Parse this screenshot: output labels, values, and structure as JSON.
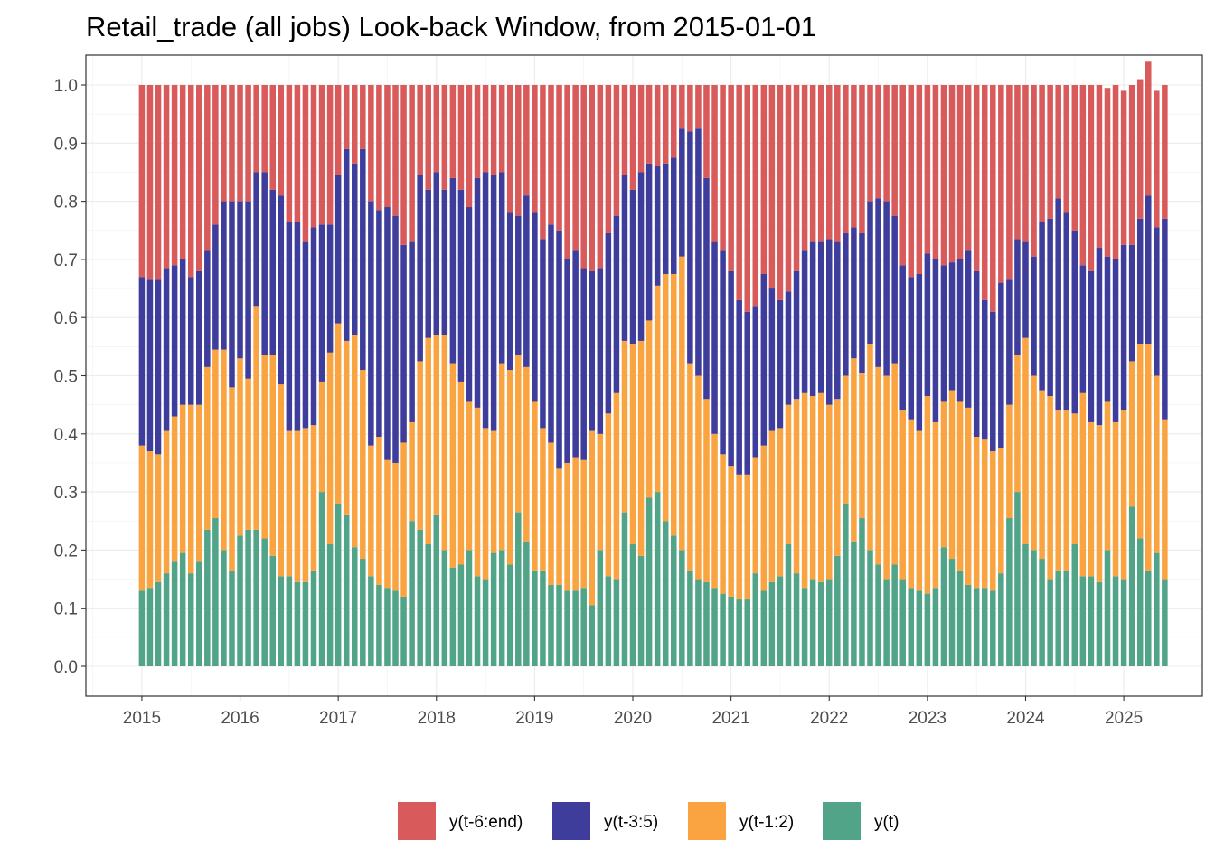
{
  "chart_data": {
    "type": "bar",
    "stacked": true,
    "title": "Retail_trade (all jobs) Look-back Window, from 2015-01-01",
    "xlabel": "",
    "ylabel": "",
    "x_start": "2015-01",
    "x_end": "2025-04",
    "ylim": [
      0,
      1
    ],
    "xlim": [
      2014.43,
      2025.8
    ],
    "y_ticks": [
      "0.0",
      "0.1",
      "0.2",
      "0.3",
      "0.4",
      "0.5",
      "0.6",
      "0.7",
      "0.8",
      "0.9",
      "1.0"
    ],
    "x_ticks": [
      "2015",
      "2016",
      "2017",
      "2018",
      "2019",
      "2020",
      "2021",
      "2022",
      "2023",
      "2024",
      "2025"
    ],
    "grid": true,
    "legend_position": "bottom",
    "series_colors": {
      "y_t": "#52a488",
      "y_t1_2": "#f9a440",
      "y_t3_5": "#3e3d9c",
      "y_t6_end": "#d85a5a"
    },
    "legend": [
      {
        "key": "y_t6_end",
        "label": "y(t-6:end)"
      },
      {
        "key": "y_t3_5",
        "label": "y(t-3:5)"
      },
      {
        "key": "y_t1_2",
        "label": "y(t-1:2)"
      },
      {
        "key": "y_t",
        "label": "y(t)"
      }
    ],
    "series": [
      {
        "name": "y(t)",
        "key": "y_t",
        "values": [
          0.13,
          0.135,
          0.145,
          0.16,
          0.18,
          0.195,
          0.16,
          0.18,
          0.235,
          0.255,
          0.2,
          0.165,
          0.225,
          0.235,
          0.235,
          0.22,
          0.19,
          0.155,
          0.155,
          0.145,
          0.145,
          0.165,
          0.3,
          0.21,
          0.28,
          0.26,
          0.205,
          0.185,
          0.155,
          0.14,
          0.135,
          0.13,
          0.12,
          0.25,
          0.235,
          0.21,
          0.26,
          0.2,
          0.17,
          0.175,
          0.2,
          0.155,
          0.15,
          0.195,
          0.2,
          0.175,
          0.265,
          0.215,
          0.165,
          0.165,
          0.14,
          0.14,
          0.13,
          0.13,
          0.135,
          0.105,
          0.2,
          0.155,
          0.15,
          0.265,
          0.21,
          0.19,
          0.29,
          0.3,
          0.25,
          0.225,
          0.2,
          0.165,
          0.15,
          0.145,
          0.135,
          0.125,
          0.12,
          0.115,
          0.115,
          0.16,
          0.13,
          0.145,
          0.155,
          0.21,
          0.16,
          0.135,
          0.15,
          0.145,
          0.15,
          0.19,
          0.28,
          0.215,
          0.255,
          0.2,
          0.175,
          0.15,
          0.175,
          0.15,
          0.135,
          0.13,
          0.125,
          0.135,
          0.205,
          0.185,
          0.165,
          0.14,
          0.135,
          0.135,
          0.13,
          0.16,
          0.255,
          0.3,
          0.21,
          0.2,
          0.185,
          0.15,
          0.165,
          0.165,
          0.21,
          0.155,
          0.155,
          0.145,
          0.2,
          0.155,
          0.15,
          0.275,
          0.22,
          0.165,
          0.195,
          0.15
        ]
      },
      {
        "name": "y(t-1:2)",
        "key": "y_t1_2",
        "values": [
          0.25,
          0.235,
          0.22,
          0.245,
          0.25,
          0.255,
          0.29,
          0.27,
          0.28,
          0.29,
          0.345,
          0.315,
          0.305,
          0.26,
          0.385,
          0.315,
          0.345,
          0.33,
          0.25,
          0.26,
          0.265,
          0.25,
          0.19,
          0.33,
          0.31,
          0.3,
          0.365,
          0.325,
          0.225,
          0.255,
          0.22,
          0.22,
          0.265,
          0.17,
          0.29,
          0.355,
          0.31,
          0.37,
          0.35,
          0.315,
          0.255,
          0.29,
          0.26,
          0.21,
          0.32,
          0.335,
          0.27,
          0.3,
          0.29,
          0.245,
          0.245,
          0.2,
          0.22,
          0.23,
          0.22,
          0.3,
          0.2,
          0.28,
          0.32,
          0.295,
          0.345,
          0.37,
          0.305,
          0.355,
          0.425,
          0.45,
          0.505,
          0.355,
          0.35,
          0.315,
          0.265,
          0.24,
          0.225,
          0.215,
          0.215,
          0.2,
          0.25,
          0.26,
          0.255,
          0.24,
          0.3,
          0.335,
          0.315,
          0.325,
          0.3,
          0.27,
          0.22,
          0.315,
          0.25,
          0.355,
          0.34,
          0.35,
          0.345,
          0.29,
          0.29,
          0.275,
          0.34,
          0.285,
          0.25,
          0.29,
          0.29,
          0.305,
          0.26,
          0.255,
          0.24,
          0.215,
          0.195,
          0.235,
          0.355,
          0.3,
          0.29,
          0.315,
          0.275,
          0.275,
          0.225,
          0.315,
          0.265,
          0.27,
          0.255,
          0.265,
          0.29,
          0.25,
          0.335,
          0.39,
          0.305,
          0.275
        ]
      },
      {
        "name": "y(t-3:5)",
        "key": "y_t3_5",
        "values": [
          0.29,
          0.295,
          0.3,
          0.28,
          0.26,
          0.25,
          0.22,
          0.23,
          0.2,
          0.215,
          0.255,
          0.32,
          0.27,
          0.305,
          0.23,
          0.315,
          0.285,
          0.325,
          0.36,
          0.36,
          0.32,
          0.34,
          0.27,
          0.22,
          0.255,
          0.33,
          0.295,
          0.38,
          0.42,
          0.39,
          0.435,
          0.425,
          0.34,
          0.31,
          0.32,
          0.255,
          0.28,
          0.25,
          0.32,
          0.33,
          0.335,
          0.395,
          0.44,
          0.44,
          0.33,
          0.27,
          0.24,
          0.295,
          0.325,
          0.325,
          0.375,
          0.41,
          0.35,
          0.355,
          0.33,
          0.275,
          0.285,
          0.31,
          0.305,
          0.285,
          0.265,
          0.29,
          0.27,
          0.205,
          0.19,
          0.2,
          0.22,
          0.4,
          0.425,
          0.38,
          0.33,
          0.35,
          0.335,
          0.3,
          0.28,
          0.26,
          0.295,
          0.245,
          0.22,
          0.195,
          0.22,
          0.245,
          0.265,
          0.26,
          0.285,
          0.27,
          0.245,
          0.225,
          0.24,
          0.245,
          0.29,
          0.3,
          0.255,
          0.25,
          0.245,
          0.27,
          0.245,
          0.28,
          0.235,
          0.22,
          0.245,
          0.27,
          0.285,
          0.24,
          0.24,
          0.285,
          0.215,
          0.2,
          0.165,
          0.205,
          0.29,
          0.305,
          0.365,
          0.34,
          0.315,
          0.22,
          0.26,
          0.305,
          0.25,
          0.28,
          0.285,
          0.2,
          0.215,
          0.255,
          0.255,
          0.345
        ]
      },
      {
        "name": "y(t-6:end)",
        "key": "y_t6_end",
        "values": [
          0.33,
          0.335,
          0.335,
          0.315,
          0.31,
          0.3,
          0.33,
          0.32,
          0.285,
          0.24,
          0.2,
          0.2,
          0.2,
          0.2,
          0.15,
          0.15,
          0.18,
          0.19,
          0.235,
          0.235,
          0.27,
          0.245,
          0.24,
          0.24,
          0.155,
          0.11,
          0.135,
          0.11,
          0.2,
          0.215,
          0.21,
          0.225,
          0.275,
          0.27,
          0.155,
          0.18,
          0.15,
          0.18,
          0.16,
          0.18,
          0.21,
          0.16,
          0.15,
          0.155,
          0.15,
          0.22,
          0.225,
          0.19,
          0.22,
          0.265,
          0.24,
          0.25,
          0.3,
          0.285,
          0.315,
          0.32,
          0.315,
          0.255,
          0.225,
          0.155,
          0.18,
          0.15,
          0.135,
          0.14,
          0.135,
          0.125,
          0.075,
          0.08,
          0.075,
          0.16,
          0.27,
          0.285,
          0.32,
          0.37,
          0.39,
          0.38,
          0.325,
          0.35,
          0.37,
          0.355,
          0.32,
          0.285,
          0.27,
          0.27,
          0.265,
          0.27,
          0.255,
          0.245,
          0.255,
          0.2,
          0.195,
          0.2,
          0.225,
          0.31,
          0.33,
          0.325,
          0.29,
          0.3,
          0.31,
          0.305,
          0.3,
          0.285,
          0.32,
          0.37,
          0.39,
          0.34,
          0.335,
          0.265,
          0.27,
          0.295,
          0.235,
          0.23,
          0.195,
          0.22,
          0.25,
          0.31,
          0.32,
          0.28,
          0.29,
          0.3,
          0.265,
          0.275,
          0.24,
          0.23,
          0.235,
          0.23
        ]
      }
    ]
  }
}
